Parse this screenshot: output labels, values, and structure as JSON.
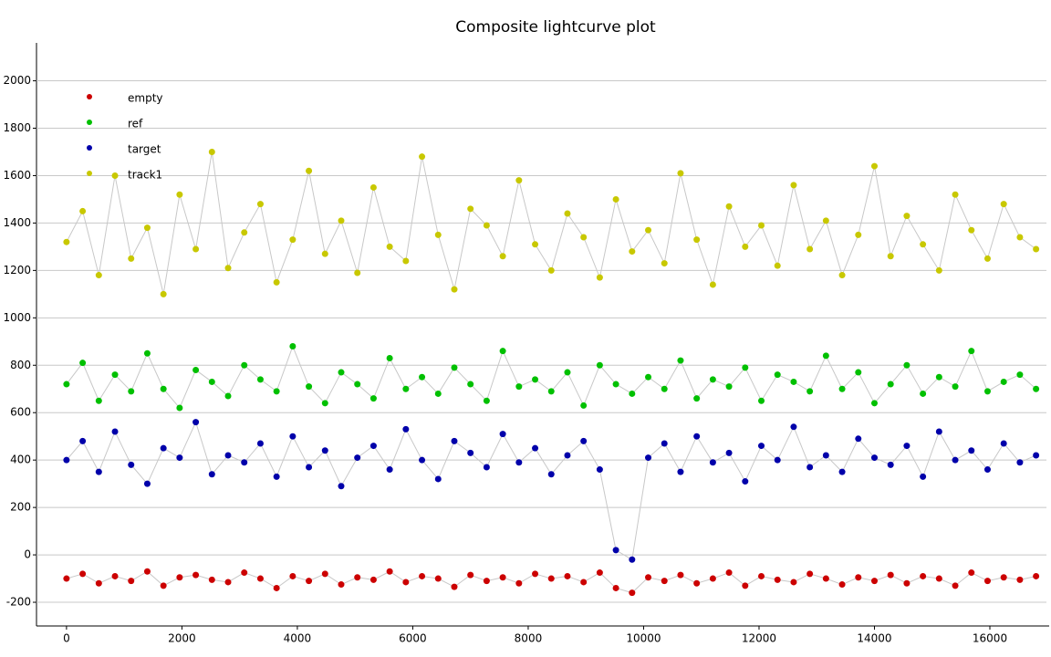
{
  "chart_data": {
    "type": "scatter",
    "title": "Composite lightcurve plot",
    "x": [
      0,
      280,
      560,
      840,
      1120,
      1400,
      1680,
      1960,
      2240,
      2520,
      2800,
      3080,
      3360,
      3640,
      3920,
      4200,
      4480,
      4760,
      5040,
      5320,
      5600,
      5880,
      6160,
      6440,
      6720,
      7000,
      7280,
      7560,
      7840,
      8120,
      8400,
      8680,
      8960,
      9240,
      9520,
      9800,
      10080,
      10360,
      10640,
      10920,
      11200,
      11480,
      11760,
      12040,
      12320,
      12600,
      12880,
      13160,
      13440,
      13720,
      14000,
      14280,
      14560,
      14840,
      15120,
      15400,
      15680,
      15960,
      16240,
      16520,
      16800
    ],
    "series": [
      {
        "name": "empty",
        "color": "#cc0000",
        "values": [
          -100,
          -80,
          -120,
          -90,
          -110,
          -70,
          -130,
          -95,
          -85,
          -105,
          -115,
          -75,
          -100,
          -140,
          -90,
          -110,
          -80,
          -125,
          -95,
          -105,
          -70,
          -115,
          -90,
          -100,
          -135,
          -85,
          -110,
          -95,
          -120,
          -80,
          -100,
          -90,
          -115,
          -75,
          -140,
          -160,
          -95,
          -110,
          -85,
          -120,
          -100,
          -75,
          -130,
          -90,
          -105,
          -115,
          -80,
          -100,
          -125,
          -95,
          -110,
          -85,
          -120,
          -90,
          -100,
          -130,
          -75,
          -110,
          -95,
          -105,
          -90
        ]
      },
      {
        "name": "ref",
        "color": "#00c000",
        "values": [
          720,
          810,
          650,
          760,
          690,
          850,
          700,
          620,
          780,
          730,
          670,
          800,
          740,
          690,
          880,
          710,
          640,
          770,
          720,
          660,
          830,
          700,
          750,
          680,
          790,
          720,
          650,
          860,
          710,
          740,
          690,
          770,
          630,
          800,
          720,
          680,
          750,
          700,
          820,
          660,
          740,
          710,
          790,
          650,
          760,
          730,
          690,
          840,
          700,
          770,
          640,
          720,
          800,
          680,
          750,
          710,
          860,
          690,
          730,
          760,
          700
        ]
      },
      {
        "name": "target",
        "color": "#0000aa",
        "values": [
          400,
          480,
          350,
          520,
          380,
          300,
          450,
          410,
          560,
          340,
          420,
          390,
          470,
          330,
          500,
          370,
          440,
          290,
          410,
          460,
          360,
          530,
          400,
          320,
          480,
          430,
          370,
          510,
          390,
          450,
          340,
          420,
          480,
          360,
          20,
          -20,
          410,
          470,
          350,
          500,
          390,
          430,
          310,
          460,
          400,
          540,
          370,
          420,
          350,
          490,
          410,
          380,
          460,
          330,
          520,
          400,
          440,
          360,
          470,
          390,
          420
        ]
      },
      {
        "name": "track1",
        "color": "#c8c800",
        "values": [
          1320,
          1450,
          1180,
          1600,
          1250,
          1380,
          1100,
          1520,
          1290,
          1700,
          1210,
          1360,
          1480,
          1150,
          1330,
          1620,
          1270,
          1410,
          1190,
          1550,
          1300,
          1240,
          1680,
          1350,
          1120,
          1460,
          1390,
          1260,
          1580,
          1310,
          1200,
          1440,
          1340,
          1170,
          1500,
          1280,
          1370,
          1230,
          1610,
          1330,
          1140,
          1470,
          1300,
          1390,
          1220,
          1560,
          1290,
          1410,
          1180,
          1350,
          1640,
          1260,
          1430,
          1310,
          1200,
          1520,
          1370,
          1250,
          1480,
          1340,
          1290
        ]
      }
    ],
    "xlim": [
      -520,
      16980
    ],
    "ylim": [
      -300,
      2160
    ],
    "xticks": [
      0,
      2000,
      4000,
      6000,
      8000,
      10000,
      12000,
      14000,
      16000
    ],
    "yticks": [
      -200,
      0,
      200,
      400,
      600,
      800,
      1000,
      1200,
      1400,
      1600,
      1800,
      2000
    ],
    "grid": true,
    "legend": "upper left"
  }
}
